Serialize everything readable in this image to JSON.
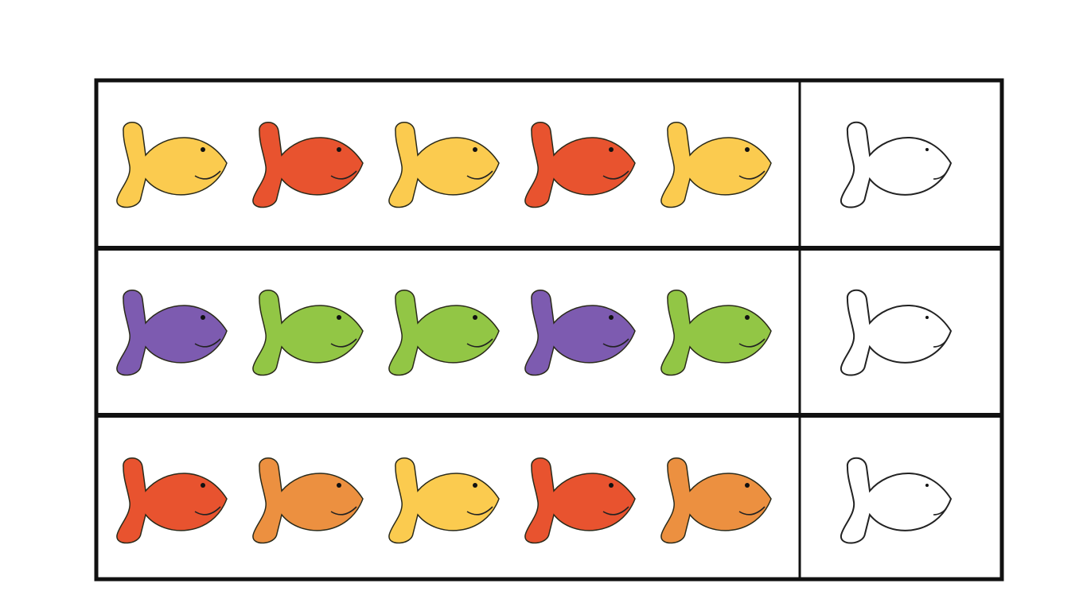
{
  "worksheet": {
    "rows": [
      {
        "pattern": [
          "yellow",
          "red",
          "yellow",
          "red",
          "yellow"
        ],
        "answer": "blank"
      },
      {
        "pattern": [
          "purple",
          "green",
          "green",
          "purple",
          "green"
        ],
        "answer": "blank"
      },
      {
        "pattern": [
          "red",
          "orange",
          "yellow",
          "red",
          "orange"
        ],
        "answer": "blank"
      }
    ],
    "colors": {
      "yellow": "#fbcb4f",
      "red": "#e8532f",
      "purple": "#7d5bb0",
      "green": "#92c645",
      "orange": "#ec9040",
      "blank": "#ffffff",
      "outline": "#2a2a1a",
      "border": "#111111"
    }
  }
}
